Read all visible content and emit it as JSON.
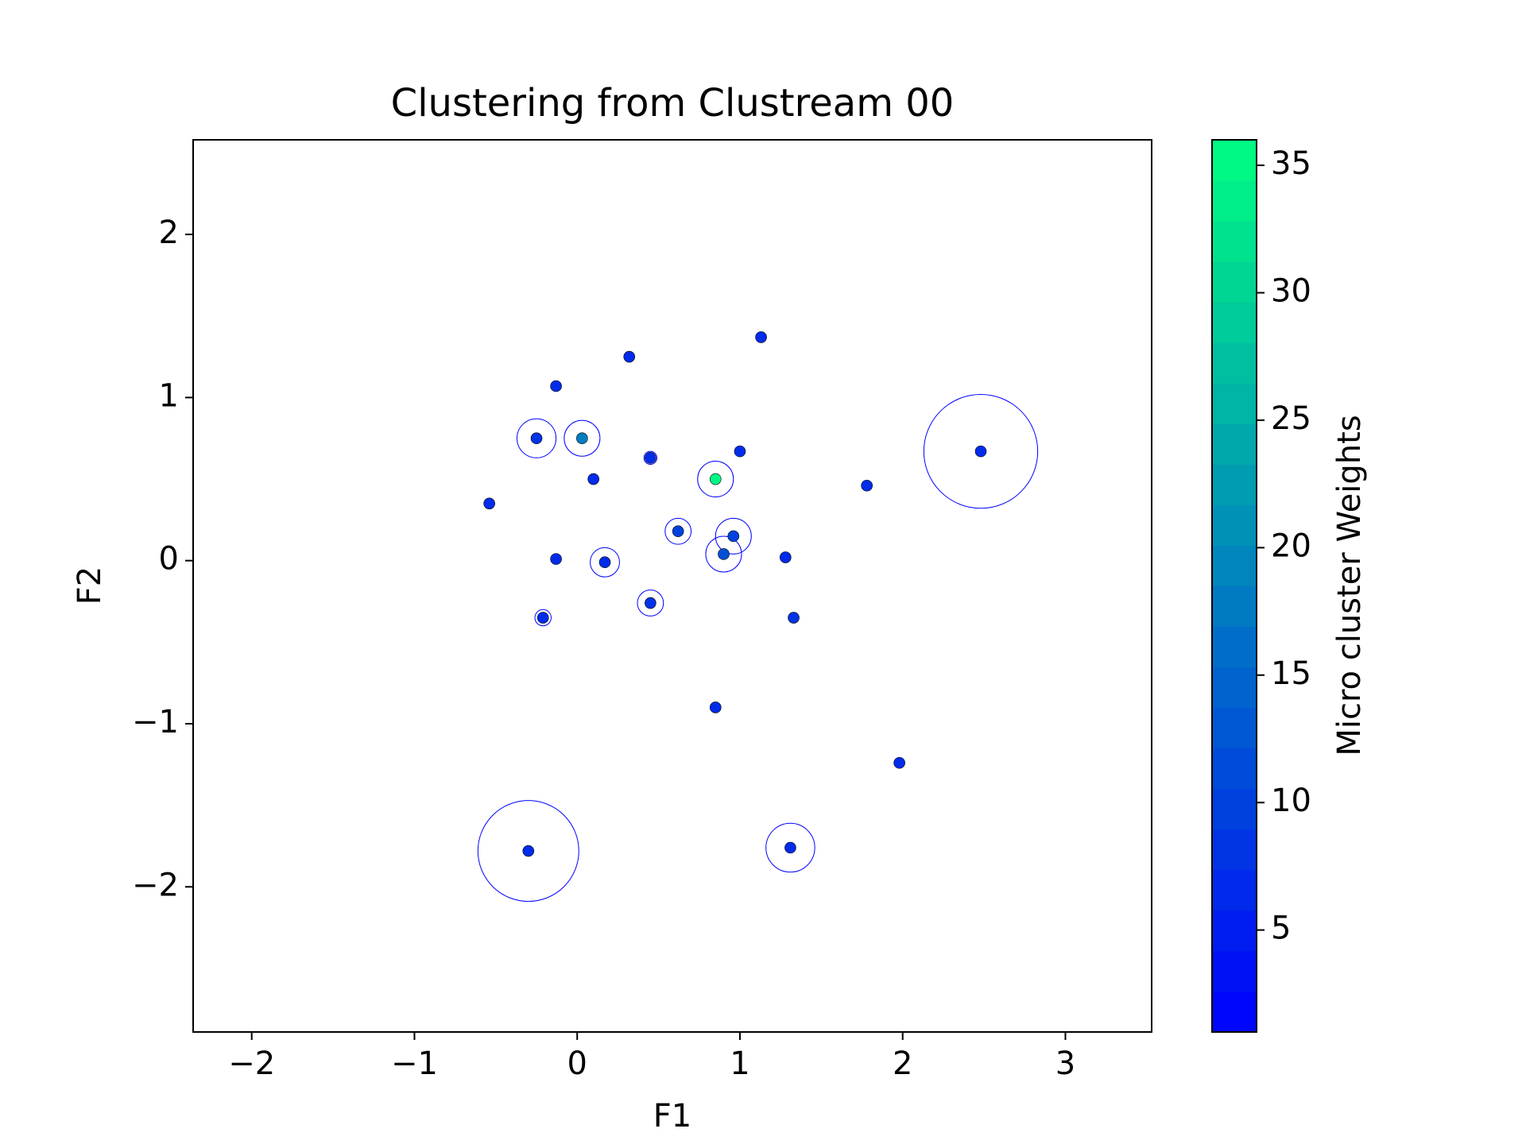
{
  "chart_data": {
    "type": "scatter",
    "title": "Clustering from Clustream 00",
    "xlabel": "F1",
    "ylabel": "F2",
    "colorbar_label": "Micro cluster Weights",
    "x": [
      1.13,
      0.32,
      -0.13,
      -0.25,
      0.03,
      0.45,
      1.0,
      0.1,
      0.85,
      -0.54,
      1.78,
      2.48,
      0.62,
      0.96,
      0.9,
      1.28,
      -0.13,
      0.17,
      0.45,
      -0.21,
      1.33,
      0.85,
      1.98,
      -0.3,
      1.31
    ],
    "y": [
      1.37,
      1.25,
      1.07,
      0.75,
      0.75,
      0.63,
      0.67,
      0.5,
      0.5,
      0.35,
      0.46,
      0.67,
      0.18,
      0.15,
      0.04,
      0.02,
      0.01,
      -0.01,
      -0.26,
      -0.35,
      -0.35,
      -0.9,
      -1.24,
      -1.78,
      -1.76
    ],
    "weights": [
      7,
      7,
      7,
      8,
      18,
      7,
      7,
      7,
      35,
      7,
      7,
      7,
      10,
      10,
      12,
      7,
      7,
      7,
      8,
      7,
      8,
      7,
      7,
      7,
      7
    ],
    "radius": [
      0,
      0,
      0,
      0.12,
      0.11,
      0.04,
      0,
      0,
      0.11,
      0,
      0,
      0.35,
      0.08,
      0.11,
      0.11,
      0,
      0,
      0.09,
      0.08,
      0.05,
      0,
      0,
      0,
      0.31,
      0.15
    ],
    "circle_color": "#0000ff",
    "colormap": [
      "#0000ff",
      "#00ff80"
    ],
    "clim": [
      1,
      36
    ],
    "cticks": [
      5,
      10,
      15,
      20,
      25,
      30,
      35
    ],
    "xlim": [
      -2.36,
      3.53
    ],
    "xticks": [
      {
        "value": -2,
        "label": "−2"
      },
      {
        "value": -1,
        "label": "−1"
      },
      0,
      1,
      2,
      3
    ],
    "ylim": [
      -2.89,
      2.58
    ],
    "yticks": [
      {
        "value": -2,
        "label": "−2"
      },
      {
        "value": -1,
        "label": "−1"
      },
      0,
      1,
      2
    ]
  }
}
